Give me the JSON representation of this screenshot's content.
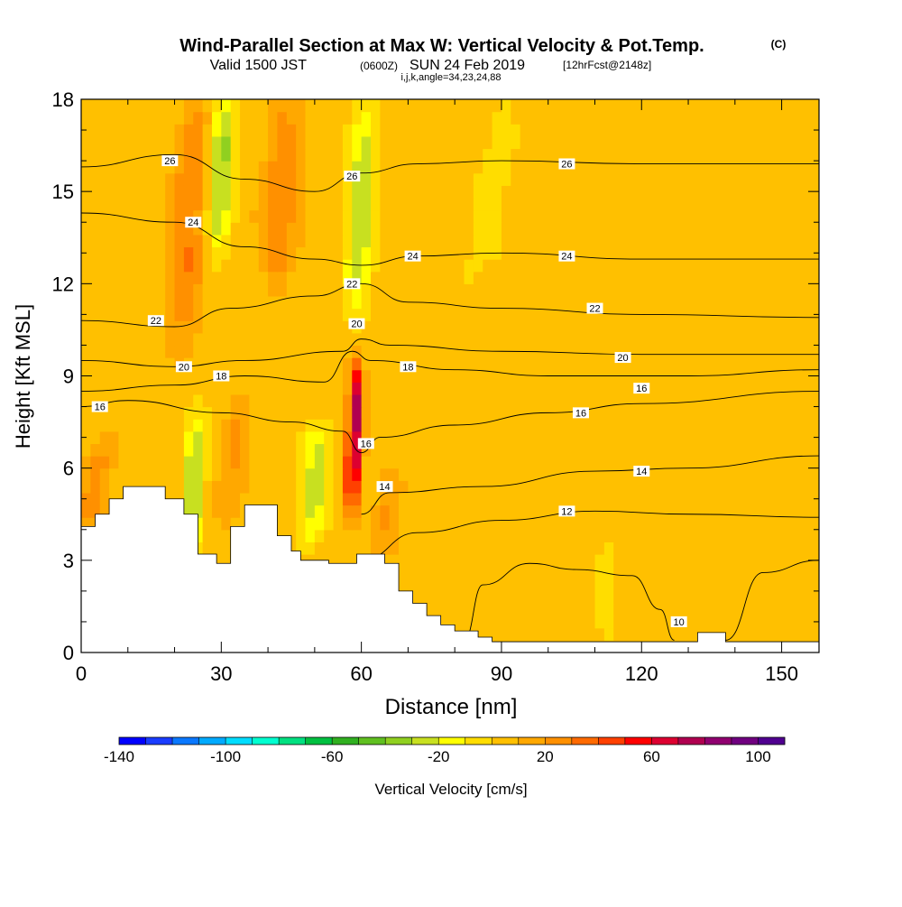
{
  "header": {
    "title": "Wind-Parallel Section at Max W: Vertical Velocity & Pot.Temp.",
    "copyright": "(C)",
    "valid_prefix": "Valid 1500 JST",
    "valid_utc": "(0600Z)",
    "valid_date": "SUN 24 Feb 2019",
    "forecast": "[12hrFcst@2148z]",
    "indices": "i,j,k,angle=34,23,24,88"
  },
  "chart_data": {
    "type": "heatmap",
    "xlabel": "Distance [nm]",
    "ylabel": "Height [Kft MSL]",
    "xlim": [
      0,
      158
    ],
    "ylim": [
      0,
      18
    ],
    "x_ticks": [
      0,
      30,
      60,
      90,
      120,
      150
    ],
    "y_ticks": [
      0,
      3,
      6,
      9,
      12,
      15,
      18
    ],
    "background_w": 5,
    "w_features": [
      {
        "kind": "updraft",
        "x": 58.5,
        "xw": 1.6,
        "y0": 4.5,
        "y1": 9.5,
        "peak": 70
      },
      {
        "kind": "updraft",
        "x": 23,
        "xw": 3.5,
        "y0": 10,
        "y1": 18,
        "peak": 25
      },
      {
        "kind": "updraft",
        "x": 43,
        "xw": 4,
        "y0": 12,
        "y1": 18,
        "peak": 22
      },
      {
        "kind": "updraft",
        "x": 3,
        "xw": 3,
        "y0": 4,
        "y1": 7,
        "peak": 20
      },
      {
        "kind": "updraft",
        "x": 33,
        "xw": 3,
        "y0": 4,
        "y1": 8.5,
        "peak": 15
      },
      {
        "kind": "updraft",
        "x": 66,
        "xw": 3,
        "y0": 3,
        "y1": 6,
        "peak": 15
      },
      {
        "kind": "downdraft",
        "x": 30,
        "xw": 2.4,
        "y0": 13,
        "y1": 18,
        "peak": -40
      },
      {
        "kind": "downdraft",
        "x": 60,
        "xw": 2.6,
        "y0": 11,
        "y1": 18,
        "peak": -35
      },
      {
        "kind": "downdraft",
        "x": 24,
        "xw": 2.2,
        "y0": 3,
        "y1": 8,
        "peak": -35
      },
      {
        "kind": "downdraft",
        "x": 50,
        "xw": 3,
        "y0": 3.5,
        "y1": 7.5,
        "peak": -30
      },
      {
        "kind": "downdraft",
        "x": 88,
        "xw": 4,
        "y0": 12,
        "y1": 18,
        "peak": -10
      },
      {
        "kind": "downdraft",
        "x": 112,
        "xw": 3,
        "y0": 0,
        "y1": 4,
        "peak": -8
      }
    ],
    "theta_contours": [
      {
        "value": 10,
        "points": [
          [
            82,
            0.4
          ],
          [
            86,
            2.2
          ],
          [
            96,
            2.9
          ],
          [
            106,
            2.7
          ],
          [
            118,
            2.5
          ],
          [
            124,
            1.4
          ],
          [
            127,
            0.4
          ]
        ]
      },
      {
        "value": 10,
        "points": [
          [
            138,
            0.4
          ],
          [
            146,
            2.6
          ],
          [
            158,
            3.0
          ]
        ]
      },
      {
        "value": 12,
        "points": [
          [
            60,
            3.0
          ],
          [
            72,
            3.9
          ],
          [
            90,
            4.3
          ],
          [
            110,
            4.6
          ],
          [
            130,
            4.5
          ],
          [
            158,
            4.4
          ]
        ]
      },
      {
        "value": 14,
        "points": [
          [
            60,
            4.5
          ],
          [
            66,
            5.2
          ],
          [
            86,
            5.4
          ],
          [
            110,
            5.9
          ],
          [
            130,
            6.0
          ],
          [
            158,
            6.4
          ]
        ]
      },
      {
        "value": 16,
        "points": [
          [
            0,
            8.0
          ],
          [
            10,
            8.2
          ],
          [
            30,
            7.8
          ],
          [
            45,
            7.5
          ],
          [
            56,
            7.2
          ],
          [
            60,
            6.5
          ],
          [
            64,
            7.0
          ],
          [
            80,
            7.4
          ],
          [
            100,
            7.8
          ],
          [
            120,
            8.1
          ],
          [
            158,
            8.5
          ]
        ]
      },
      {
        "value": 18,
        "points": [
          [
            0,
            8.5
          ],
          [
            20,
            8.7
          ],
          [
            35,
            9.0
          ],
          [
            52,
            8.8
          ],
          [
            58,
            9.8
          ],
          [
            62,
            9.5
          ],
          [
            80,
            9.2
          ],
          [
            100,
            9.0
          ],
          [
            130,
            9.0
          ],
          [
            158,
            9.2
          ]
        ]
      },
      {
        "value": 20,
        "points": [
          [
            0,
            9.5
          ],
          [
            20,
            9.3
          ],
          [
            35,
            9.5
          ],
          [
            56,
            9.8
          ],
          [
            60,
            10.2
          ],
          [
            66,
            10.0
          ],
          [
            90,
            9.8
          ],
          [
            120,
            9.7
          ],
          [
            158,
            9.7
          ]
        ]
      },
      {
        "value": 22,
        "points": [
          [
            0,
            10.8
          ],
          [
            20,
            10.6
          ],
          [
            32,
            11.2
          ],
          [
            50,
            11.6
          ],
          [
            60,
            12.0
          ],
          [
            70,
            11.4
          ],
          [
            90,
            11.2
          ],
          [
            120,
            11.0
          ],
          [
            158,
            10.9
          ]
        ]
      },
      {
        "value": 24,
        "points": [
          [
            0,
            14.3
          ],
          [
            20,
            14.0
          ],
          [
            35,
            13.2
          ],
          [
            50,
            12.8
          ],
          [
            60,
            12.6
          ],
          [
            72,
            12.9
          ],
          [
            90,
            13.0
          ],
          [
            120,
            12.8
          ],
          [
            158,
            12.8
          ]
        ]
      },
      {
        "value": 26,
        "points": [
          [
            0,
            15.8
          ],
          [
            20,
            16.2
          ],
          [
            35,
            15.4
          ],
          [
            50,
            15.0
          ],
          [
            60,
            15.6
          ],
          [
            72,
            15.9
          ],
          [
            90,
            16.0
          ],
          [
            120,
            15.9
          ],
          [
            158,
            15.9
          ]
        ]
      }
    ],
    "contour_labels": [
      {
        "text": "10",
        "x": 128,
        "y": 1.0
      },
      {
        "text": "12",
        "x": 104,
        "y": 4.6
      },
      {
        "text": "14",
        "x": 65,
        "y": 5.4
      },
      {
        "text": "14",
        "x": 120,
        "y": 5.9
      },
      {
        "text": "16",
        "x": 4,
        "y": 8.0
      },
      {
        "text": "16",
        "x": 61,
        "y": 6.8
      },
      {
        "text": "16",
        "x": 107,
        "y": 7.8
      },
      {
        "text": "16",
        "x": 120,
        "y": 8.6
      },
      {
        "text": "18",
        "x": 30,
        "y": 9.0
      },
      {
        "text": "18",
        "x": 70,
        "y": 9.3
      },
      {
        "text": "20",
        "x": 22,
        "y": 9.3
      },
      {
        "text": "20",
        "x": 59,
        "y": 10.7
      },
      {
        "text": "20",
        "x": 116,
        "y": 9.6
      },
      {
        "text": "22",
        "x": 16,
        "y": 10.8
      },
      {
        "text": "22",
        "x": 58,
        "y": 12.0
      },
      {
        "text": "22",
        "x": 110,
        "y": 11.2
      },
      {
        "text": "24",
        "x": 24,
        "y": 14.0
      },
      {
        "text": "24",
        "x": 71,
        "y": 12.9
      },
      {
        "text": "24",
        "x": 104,
        "y": 12.9
      },
      {
        "text": "26",
        "x": 19,
        "y": 16.0
      },
      {
        "text": "26",
        "x": 58,
        "y": 15.5
      },
      {
        "text": "26",
        "x": 104,
        "y": 15.9
      }
    ],
    "terrain": [
      [
        0,
        4.1
      ],
      [
        3,
        4.1
      ],
      [
        3,
        4.5
      ],
      [
        6,
        4.5
      ],
      [
        6,
        5.0
      ],
      [
        9,
        5.0
      ],
      [
        9,
        5.4
      ],
      [
        18,
        5.4
      ],
      [
        18,
        5.0
      ],
      [
        22,
        5.0
      ],
      [
        22,
        4.5
      ],
      [
        25,
        4.5
      ],
      [
        25,
        3.2
      ],
      [
        29,
        3.2
      ],
      [
        29,
        2.9
      ],
      [
        32,
        2.9
      ],
      [
        32,
        4.1
      ],
      [
        35,
        4.1
      ],
      [
        35,
        4.8
      ],
      [
        42,
        4.8
      ],
      [
        42,
        3.8
      ],
      [
        45,
        3.8
      ],
      [
        45,
        3.3
      ],
      [
        47,
        3.3
      ],
      [
        47,
        3.0
      ],
      [
        53,
        3.0
      ],
      [
        53,
        2.9
      ],
      [
        59,
        2.9
      ],
      [
        59,
        3.2
      ],
      [
        65,
        3.2
      ],
      [
        65,
        2.9
      ],
      [
        68,
        2.9
      ],
      [
        68,
        2.0
      ],
      [
        71,
        2.0
      ],
      [
        71,
        1.6
      ],
      [
        74,
        1.6
      ],
      [
        74,
        1.2
      ],
      [
        77,
        1.2
      ],
      [
        77,
        0.9
      ],
      [
        80,
        0.9
      ],
      [
        80,
        0.7
      ],
      [
        85,
        0.7
      ],
      [
        85,
        0.5
      ],
      [
        88,
        0.5
      ],
      [
        88,
        0.35
      ],
      [
        132,
        0.35
      ],
      [
        132,
        0.65
      ],
      [
        138,
        0.65
      ],
      [
        138,
        0.35
      ],
      [
        158,
        0.35
      ],
      [
        158,
        0
      ]
    ],
    "colorbar": {
      "label": "Vertical Velocity [cm/s]",
      "min": -140,
      "max": 110,
      "step": 10,
      "tick_labels": [
        -140,
        -100,
        -60,
        -20,
        20,
        60,
        100
      ],
      "colors": [
        "#0000ff",
        "#1a3cff",
        "#0a78ff",
        "#00aaff",
        "#00ddff",
        "#00ffd0",
        "#00e080",
        "#00c040",
        "#30b020",
        "#60c020",
        "#90d020",
        "#c8e020",
        "#ffff00",
        "#ffdd00",
        "#ffc000",
        "#ffa800",
        "#ff9000",
        "#ff6a00",
        "#ff4000",
        "#ff0000",
        "#dd0030",
        "#b00050",
        "#900070",
        "#700080",
        "#500090"
      ]
    }
  }
}
